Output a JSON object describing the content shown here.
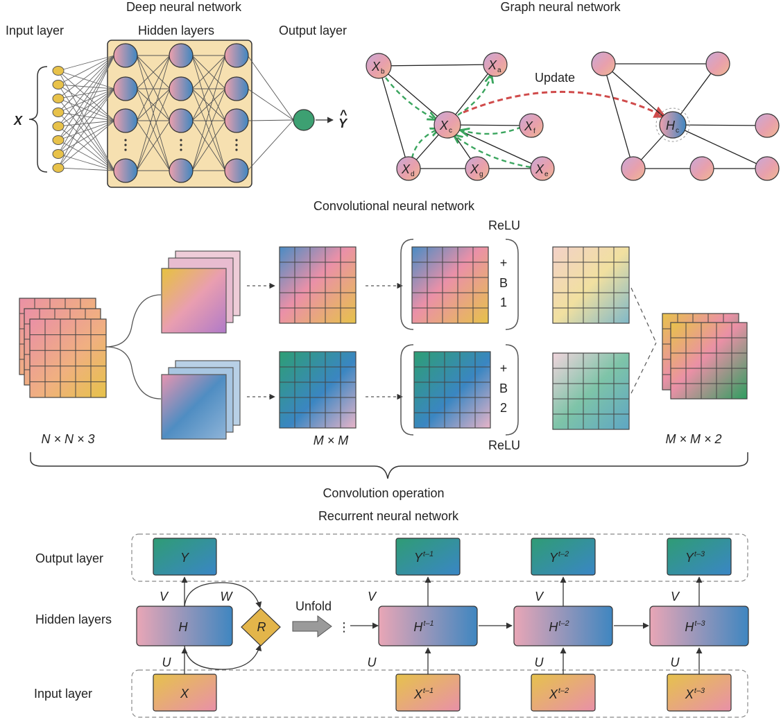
{
  "dnn": {
    "title": "Deep neural network",
    "input_layer": "Input layer",
    "hidden_layers": "Hidden layers",
    "output_layer": "Output layer",
    "x_label": "X",
    "y_label": "Y",
    "y_hat": "^"
  },
  "gnn": {
    "title": "Graph neural network",
    "update": "Update",
    "x_main": "X",
    "h_main": "H",
    "subs": {
      "a": "a",
      "b": "b",
      "c": "c",
      "d": "d",
      "e": "e",
      "f": "f",
      "g": "g"
    }
  },
  "cnn": {
    "title": "Convolutional neural network",
    "relu_top": "ReLU",
    "relu_bottom": "ReLU",
    "plus1": "+",
    "b1": "B",
    "n1": "1",
    "plus2": "+",
    "b2": "B",
    "n2": "2",
    "dim_input": "N × N × 3",
    "dim_mid": "M × M",
    "dim_out": "M × M × 2",
    "operation": "Convolution operation"
  },
  "rnn": {
    "title": "Recurrent neural network",
    "output_layer": "Output layer",
    "hidden_layers": "Hidden layers",
    "input_layer": "Input layer",
    "unfold": "Unfold",
    "ellipsis": "⋮",
    "y": "Y",
    "h": "H",
    "x": "X",
    "r": "R",
    "v": "V",
    "w": "W",
    "u": "U",
    "t1": "t–1",
    "t2": "t–2",
    "t3": "t–3"
  },
  "colors": {
    "pink": "#e79aa8",
    "blue": "#4a8fc0",
    "teal": "#2e9e7c",
    "yellow": "#e8c24a",
    "dnn_box": "#f6e0b0",
    "output_node": "#3da072",
    "green_dash": "#3aa55e",
    "red_dash": "#d04b4b"
  }
}
